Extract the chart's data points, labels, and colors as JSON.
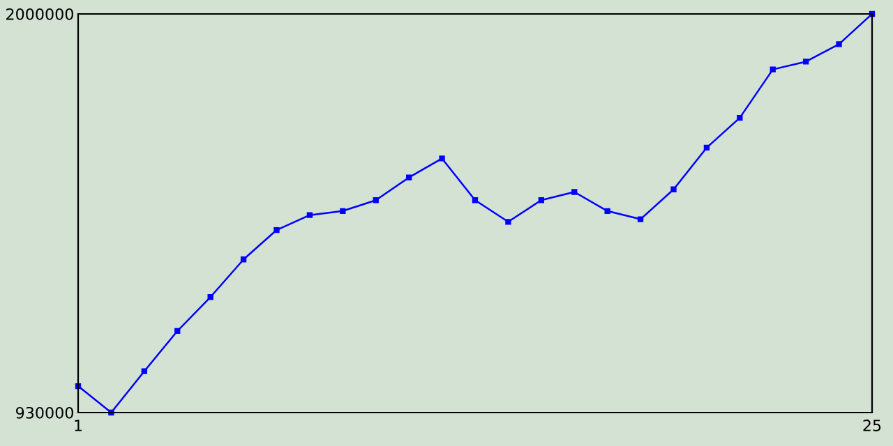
{
  "chart_data": {
    "type": "line",
    "x": [
      1,
      2,
      3,
      4,
      5,
      6,
      7,
      8,
      9,
      10,
      11,
      12,
      13,
      14,
      15,
      16,
      17,
      18,
      19,
      20,
      21,
      22,
      23,
      24,
      25
    ],
    "series": [
      {
        "color": "#0000ff",
        "values": [
          1001000,
          930000,
          1041000,
          1149000,
          1240000,
          1341000,
          1420000,
          1460000,
          1471000,
          1500000,
          1561000,
          1612000,
          1500000,
          1442000,
          1500000,
          1522000,
          1471000,
          1449000,
          1529000,
          1641000,
          1721000,
          1851000,
          1872000,
          1919000,
          2000000
        ]
      }
    ],
    "xlim": [
      1,
      25
    ],
    "xticks": [
      1,
      25
    ],
    "ylim": [
      930000,
      2000000
    ],
    "yticks": [
      930000,
      2000000
    ],
    "marker": "square",
    "line_style": "solid",
    "grid": false,
    "legend": false
  }
}
